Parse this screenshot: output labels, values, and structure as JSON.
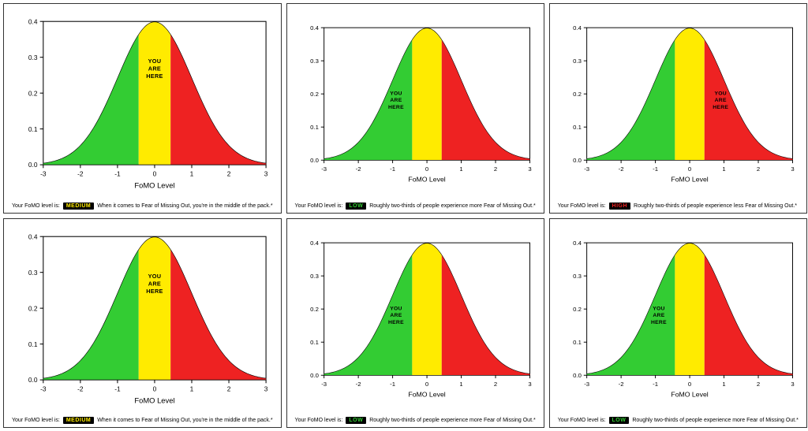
{
  "global": {
    "xlabel": "FoMO Level",
    "xlim": [
      -3,
      3
    ],
    "ylim": [
      0,
      0.4
    ],
    "xticks": [
      -3,
      -2,
      -1,
      0,
      1,
      2,
      3
    ],
    "yticks": [
      0.0,
      0.1,
      0.2,
      0.3,
      0.4
    ],
    "xtick_labels": [
      "-3",
      "-2",
      "-1",
      "0",
      "1",
      "2",
      "3"
    ],
    "ytick_labels": [
      "0.0",
      "0.1",
      "0.2",
      "0.3",
      "0.4"
    ],
    "axis_color": "#000000",
    "background_color": "#ffffff",
    "panel_border_color": "#333333",
    "marker_text_line1": "YOU",
    "marker_text_line2": "ARE",
    "marker_text_line3": "HERE",
    "caption_prefix": "Your FoMO level is:",
    "badge_bg": "#000000",
    "label_fontsize": 9,
    "tick_fontsize": 8,
    "marker_fontsize": 7
  },
  "regions": {
    "low": {
      "range": [
        -3,
        -0.43
      ],
      "fill": "#33cc33"
    },
    "medium": {
      "range": [
        -0.43,
        0.43
      ],
      "fill": "#ffeb00"
    },
    "high": {
      "range": [
        0.43,
        3
      ],
      "fill": "#ee2222"
    }
  },
  "panels": [
    {
      "id": "p0",
      "marker_region": "medium",
      "marker_x": 0.0,
      "badge_text": "MEDIUM",
      "badge_color": "#ffeb00",
      "caption_tail": "When it comes to Fear of Missing Out, you're in the middle of the pack.*"
    },
    {
      "id": "p1",
      "marker_region": "low",
      "marker_x": -0.9,
      "badge_text": "LOW",
      "badge_color": "#33cc33",
      "caption_tail": "Roughly two-thirds of people experience more Fear of Missing Out.*"
    },
    {
      "id": "p2",
      "marker_region": "high",
      "marker_x": 0.9,
      "badge_text": "HIGH",
      "badge_color": "#ee2222",
      "caption_tail": "Roughly two-thirds of people experience less Fear of Missing Out.*"
    },
    {
      "id": "p3",
      "marker_region": "medium",
      "marker_x": 0.0,
      "badge_text": "MEDIUM",
      "badge_color": "#ffeb00",
      "caption_tail": "When it comes to Fear of Missing Out, you're in the middle of the pack.*"
    },
    {
      "id": "p4",
      "marker_region": "low",
      "marker_x": -0.9,
      "badge_text": "LOW",
      "badge_color": "#33cc33",
      "caption_tail": "Roughly two-thirds of people experience more Fear of Missing Out.*"
    },
    {
      "id": "p5",
      "marker_region": "low",
      "marker_x": -0.9,
      "badge_text": "LOW",
      "badge_color": "#33cc33",
      "caption_tail": "Roughly two-thirds of people experience more Fear of Missing Out.*"
    }
  ]
}
